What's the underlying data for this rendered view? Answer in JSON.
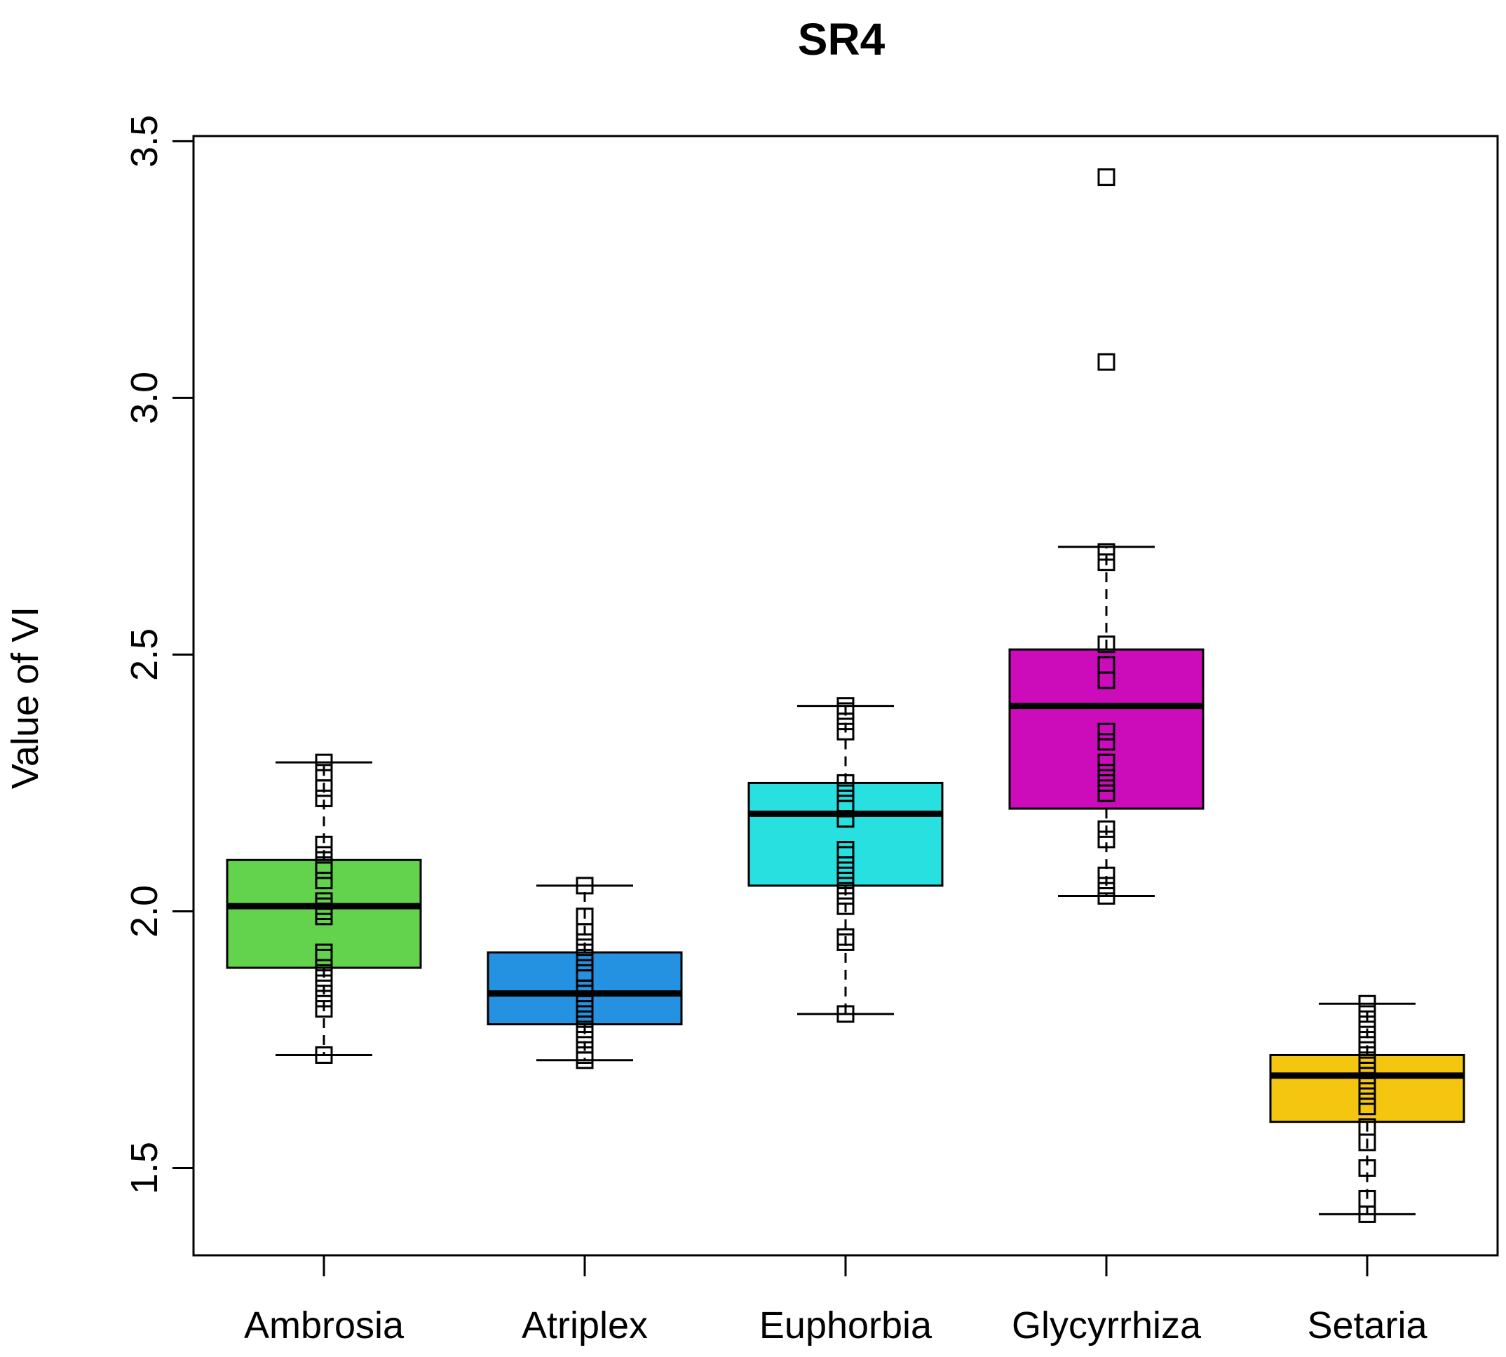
{
  "chart_data": {
    "type": "boxplot",
    "title": "SR4",
    "xlabel": "",
    "ylabel": "Value of VI",
    "ylim": [
      1.33,
      3.51
    ],
    "yticks": [
      1.5,
      2.0,
      2.5,
      3.0,
      3.5
    ],
    "ytick_labels": [
      "1.5",
      "2.0",
      "2.5",
      "3.0",
      "3.5"
    ],
    "categories": [
      "Ambrosia",
      "Atriplex",
      "Euphorbia",
      "Glycyrrhiza",
      "Setaria"
    ],
    "series": [
      {
        "name": "Ambrosia",
        "color": "#63d24d",
        "min": 1.72,
        "q1": 1.89,
        "median": 2.01,
        "q3": 2.1,
        "max": 2.29,
        "points": [
          1.72,
          1.81,
          1.83,
          1.85,
          1.87,
          1.89,
          1.91,
          1.92,
          1.99,
          2.0,
          2.01,
          2.02,
          2.06,
          2.08,
          2.09,
          2.11,
          2.13,
          2.22,
          2.24,
          2.27,
          2.29
        ]
      },
      {
        "name": "Atriplex",
        "color": "#2592e1",
        "min": 1.71,
        "q1": 1.78,
        "median": 1.84,
        "q3": 1.92,
        "max": 2.05,
        "points": [
          1.71,
          1.72,
          1.74,
          1.76,
          1.78,
          1.8,
          1.82,
          1.84,
          1.85,
          1.87,
          1.88,
          1.9,
          1.92,
          1.94,
          1.96,
          1.99,
          2.05
        ]
      },
      {
        "name": "Euphorbia",
        "color": "#28e0e0",
        "min": 1.8,
        "q1": 2.05,
        "median": 2.19,
        "q3": 2.25,
        "max": 2.4,
        "points": [
          1.8,
          1.94,
          1.95,
          2.01,
          2.03,
          2.05,
          2.07,
          2.09,
          2.11,
          2.12,
          2.18,
          2.2,
          2.21,
          2.23,
          2.25,
          2.35,
          2.37,
          2.39,
          2.4
        ]
      },
      {
        "name": "Glycyrrhiza",
        "color": "#cc0cba",
        "min": 2.03,
        "q1": 2.2,
        "median": 2.4,
        "q3": 2.51,
        "max": 2.71,
        "points": [
          2.03,
          2.05,
          2.07,
          2.14,
          2.16,
          2.23,
          2.25,
          2.27,
          2.29,
          2.33,
          2.35,
          2.45,
          2.48,
          2.52,
          2.68,
          2.7,
          3.07,
          3.43
        ]
      },
      {
        "name": "Setaria",
        "color": "#f4c610",
        "min": 1.41,
        "q1": 1.59,
        "median": 1.68,
        "q3": 1.72,
        "max": 1.82,
        "points": [
          1.41,
          1.44,
          1.5,
          1.55,
          1.58,
          1.62,
          1.64,
          1.66,
          1.68,
          1.7,
          1.72,
          1.74,
          1.76,
          1.78,
          1.8,
          1.82
        ]
      }
    ]
  }
}
